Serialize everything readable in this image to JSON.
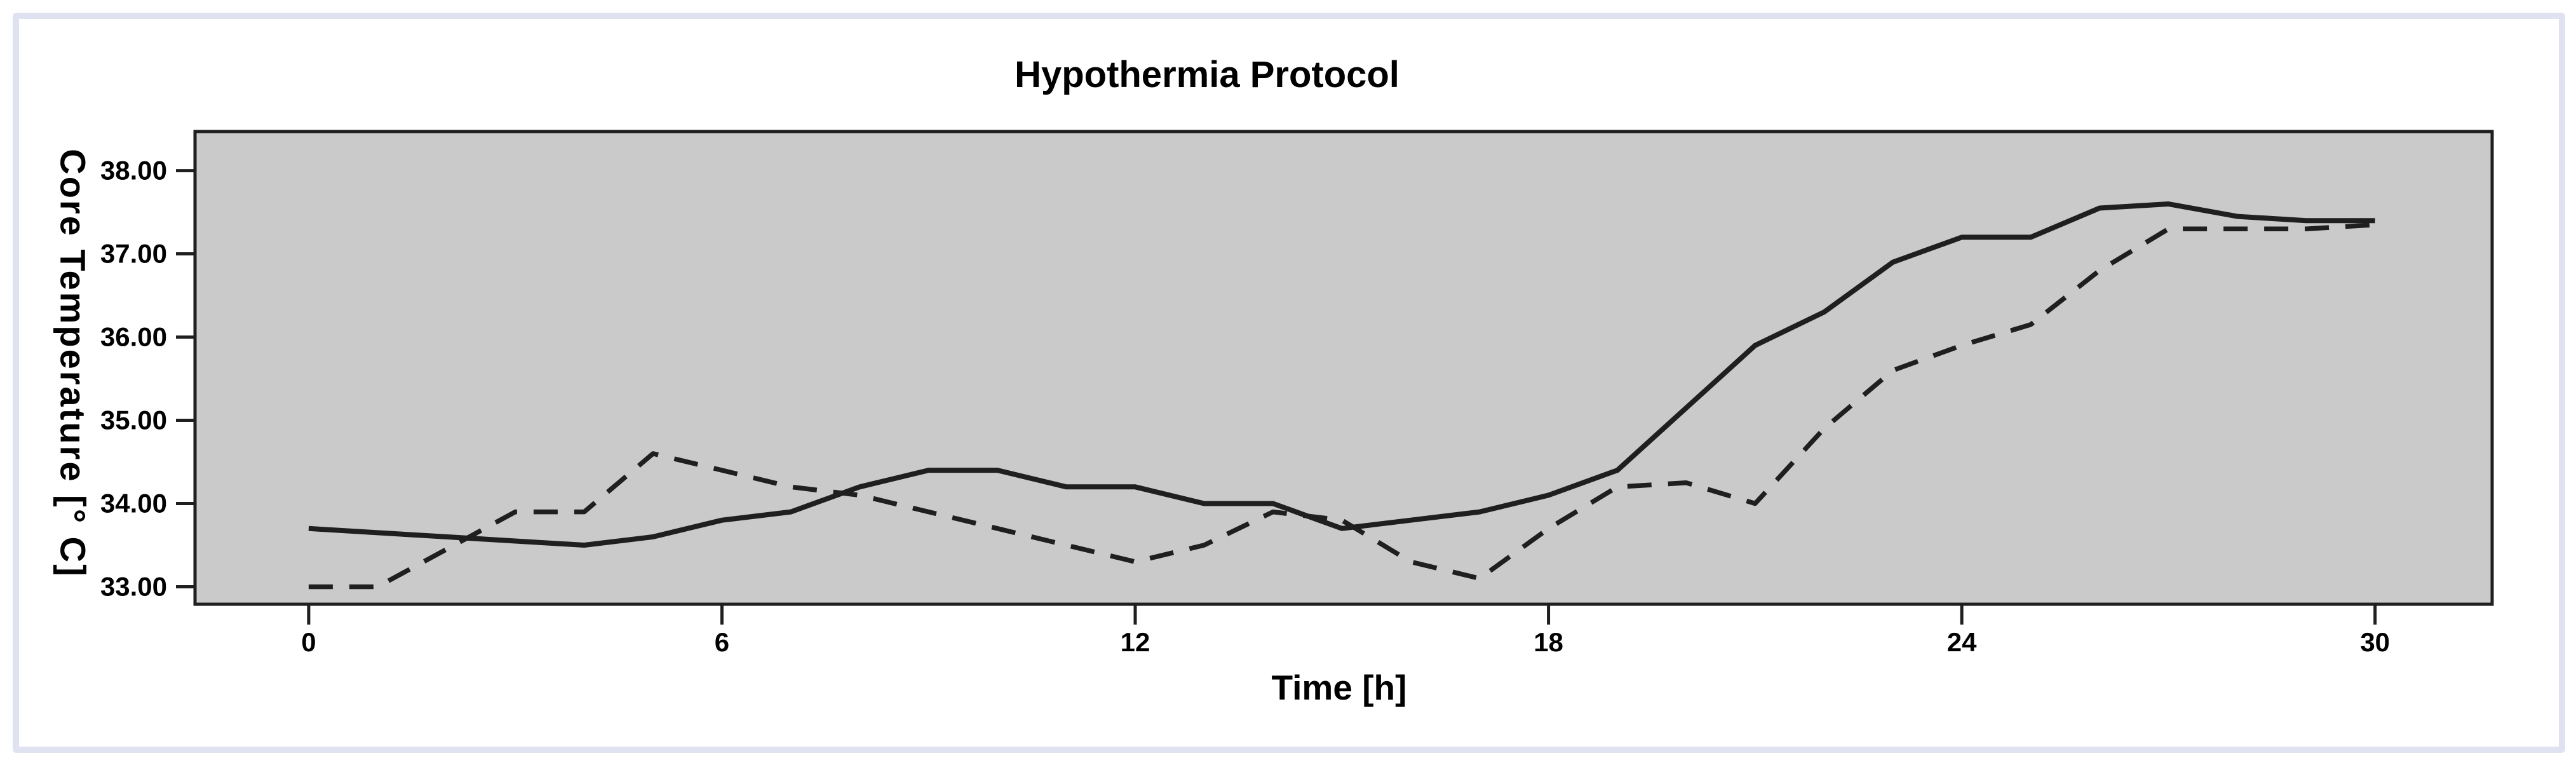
{
  "chart_data": {
    "type": "line",
    "title": "Hypothermia Protocol",
    "xlabel": "Time [h]",
    "ylabel": "Core Temperature [° C]",
    "x": [
      0,
      1,
      2,
      3,
      4,
      5,
      6,
      7,
      8,
      9,
      10,
      11,
      12,
      13,
      14,
      15,
      16,
      17,
      18,
      19,
      20,
      21,
      22,
      23,
      24,
      25,
      26,
      27,
      28,
      29,
      30
    ],
    "series": [
      {
        "name": "core-temperature-solid",
        "line_style": "solid",
        "values": [
          33.7,
          33.65,
          33.6,
          33.55,
          33.5,
          33.6,
          33.8,
          33.9,
          34.2,
          34.4,
          34.4,
          34.2,
          34.2,
          34.0,
          34.0,
          33.7,
          33.8,
          33.9,
          34.1,
          34.4,
          35.15,
          35.9,
          36.3,
          36.9,
          37.2,
          37.2,
          37.55,
          37.6,
          37.45,
          37.4,
          37.4
        ]
      },
      {
        "name": "core-temperature-dashed",
        "line_style": "dashed",
        "values": [
          33.0,
          33.0,
          33.45,
          33.9,
          33.9,
          34.6,
          34.4,
          34.2,
          34.1,
          33.9,
          33.7,
          33.5,
          33.3,
          33.5,
          33.9,
          33.8,
          33.3,
          33.1,
          33.7,
          34.2,
          34.25,
          34.0,
          34.9,
          35.6,
          35.9,
          36.15,
          36.8,
          37.3,
          37.3,
          37.3,
          37.35
        ]
      }
    ],
    "x_ticks": [
      "0",
      "6",
      "12",
      "18",
      "24",
      "30"
    ],
    "y_ticks": [
      "33.00",
      "34.00",
      "35.00",
      "36.00",
      "37.00",
      "38.00"
    ],
    "xlim": [
      -1.65,
      31.7
    ],
    "ylim": [
      32.79,
      38.47
    ],
    "grid": false,
    "legend_position": "none",
    "colors": {
      "page_background": "#ffffff",
      "frame_border": "#dfe2f0",
      "plot_background": "#cacaca",
      "line": "#1f1f1f",
      "text": "#000000"
    }
  }
}
